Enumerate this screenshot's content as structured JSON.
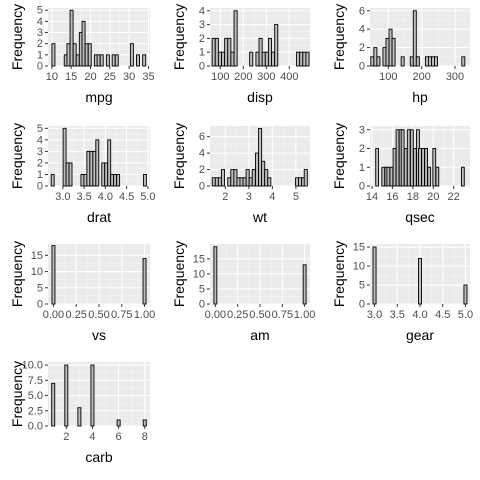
{
  "chart_data": [
    {
      "type": "bar",
      "title": "",
      "xlabel": "mpg",
      "ylabel": "Frequency",
      "xlim": [
        9,
        35.4
      ],
      "ylim": [
        0,
        5.2
      ],
      "xticks": [
        10,
        15,
        20,
        25,
        30,
        35
      ],
      "yticks": [
        0,
        1,
        2,
        3,
        4,
        5
      ],
      "grid": true,
      "bin_width": 0.785,
      "bins_x": [
        10.4,
        11.2,
        12.0,
        12.8,
        13.6,
        14.3,
        15.1,
        15.9,
        16.7,
        17.5,
        18.2,
        19.0,
        19.8,
        20.6,
        21.4,
        22.1,
        22.9,
        23.7,
        24.5,
        25.3,
        26.0,
        26.8,
        27.6,
        28.4,
        29.2,
        29.9,
        30.7,
        31.5,
        32.3,
        33.1,
        33.9
      ],
      "bins_y": [
        2,
        0,
        0,
        0,
        1,
        2,
        5,
        2,
        1,
        3,
        4,
        2,
        2,
        0,
        1,
        1,
        1,
        0,
        1,
        0,
        1,
        1,
        0,
        0,
        0,
        0,
        2,
        0,
        1,
        0,
        1
      ]
    },
    {
      "type": "bar",
      "title": "",
      "xlabel": "disp",
      "ylabel": "Frequency",
      "xlim": [
        55,
        490
      ],
      "ylim": [
        0,
        4.2
      ],
      "xticks": [
        100,
        200,
        300,
        400
      ],
      "xtick_labels": [
        "100",
        "200",
        "300",
        "400"
      ],
      "yticks": [
        0,
        1,
        2,
        3,
        4
      ],
      "grid": true,
      "bin_width": 13.6,
      "bins_x": [
        71.1,
        84.7,
        98.3,
        111.9,
        125.5,
        139.1,
        152.7,
        166.3,
        179.9,
        193.5,
        207.1,
        220.7,
        234.3,
        247.9,
        261.5,
        275.1,
        288.7,
        302.3,
        315.9,
        329.5,
        343.1,
        356.7,
        370.3,
        383.9,
        397.5,
        411.1,
        424.7,
        438.3,
        451.9,
        465.5,
        479.1
      ],
      "bins_y": [
        2,
        2,
        1,
        1,
        2,
        2,
        1,
        4,
        0,
        0,
        0,
        0,
        1,
        0,
        1,
        2,
        1,
        1,
        2,
        1,
        3,
        0,
        0,
        0,
        0,
        0,
        0,
        1,
        1,
        1,
        1
      ]
    },
    {
      "type": "bar",
      "title": "",
      "xlabel": "hp",
      "ylabel": "Frequency",
      "xlim": [
        45,
        345
      ],
      "ylim": [
        0,
        6.3
      ],
      "xticks": [
        100,
        200,
        300
      ],
      "yticks": [
        0,
        2,
        4,
        6
      ],
      "grid": true,
      "bin_width": 9.1,
      "bins_x": [
        52,
        61.1,
        70.2,
        79.3,
        88.4,
        97.5,
        106.6,
        115.7,
        124.8,
        133.9,
        143,
        152.1,
        161.2,
        170.3,
        179.4,
        188.5,
        197.6,
        206.7,
        215.8,
        224.9,
        234,
        243.1,
        252.2,
        261.3,
        270.4,
        279.5,
        288.6,
        297.7,
        306.8,
        315.9,
        325
      ],
      "bins_y": [
        1,
        2,
        1,
        0,
        2,
        3,
        4,
        3,
        0,
        0,
        1,
        0,
        0,
        1,
        6,
        1,
        0,
        0,
        1,
        1,
        1,
        1,
        0,
        0,
        0,
        0,
        0,
        0,
        0,
        0,
        1
      ]
    },
    {
      "type": "bar",
      "title": "",
      "xlabel": "drat",
      "ylabel": "Frequency",
      "xlim": [
        2.65,
        5.05
      ],
      "ylim": [
        0,
        5.2
      ],
      "xticks": [
        3.0,
        3.5,
        4.0,
        4.5,
        5.0
      ],
      "xtick_labels": [
        "3.0",
        "3.5",
        "4.0",
        "4.5",
        "5.0"
      ],
      "yticks": [
        0,
        1,
        2,
        3,
        4,
        5
      ],
      "grid": true,
      "bin_width": 0.07,
      "bins_x": [
        2.76,
        2.83,
        2.9,
        2.97,
        3.04,
        3.11,
        3.18,
        3.25,
        3.32,
        3.39,
        3.46,
        3.53,
        3.6,
        3.67,
        3.74,
        3.81,
        3.88,
        3.95,
        4.02,
        4.09,
        4.16,
        4.23,
        4.3,
        4.37,
        4.44,
        4.51,
        4.58,
        4.65,
        4.72,
        4.79,
        4.86,
        4.93
      ],
      "bins_y": [
        1,
        0,
        0,
        0,
        5,
        2,
        2,
        0,
        0,
        0,
        1,
        1,
        3,
        3,
        3,
        4,
        0,
        2,
        2,
        4,
        1,
        1,
        1,
        0,
        0,
        0,
        0,
        0,
        0,
        0,
        0,
        1
      ]
    },
    {
      "type": "bar",
      "title": "",
      "xlabel": "wt",
      "ylabel": "Frequency",
      "xlim": [
        1.35,
        5.6
      ],
      "ylim": [
        0,
        7.3
      ],
      "xticks": [
        2,
        3,
        4,
        5
      ],
      "yticks": [
        0,
        2,
        4,
        6
      ],
      "grid": true,
      "bin_width": 0.131,
      "bins_x": [
        1.51,
        1.64,
        1.77,
        1.9,
        2.04,
        2.17,
        2.3,
        2.43,
        2.56,
        2.69,
        2.82,
        2.95,
        3.08,
        3.21,
        3.35,
        3.48,
        3.61,
        3.74,
        3.87,
        4.0,
        4.13,
        4.26,
        4.39,
        4.52,
        4.66,
        4.79,
        4.92,
        5.05,
        5.18,
        5.31,
        5.42
      ],
      "bins_y": [
        1,
        1,
        1,
        2,
        0,
        1,
        2,
        2,
        1,
        1,
        1,
        2,
        1,
        2,
        4,
        7,
        3,
        2,
        1,
        0,
        0,
        0,
        0,
        0,
        0,
        0,
        0,
        1,
        1,
        1,
        2
      ]
    },
    {
      "type": "bar",
      "title": "",
      "xlabel": "qsec",
      "ylabel": "Frequency",
      "xlim": [
        13.8,
        23.6
      ],
      "ylim": [
        0,
        3.2
      ],
      "xticks": [
        14,
        16,
        18,
        20,
        22
      ],
      "yticks": [
        0,
        1,
        2,
        3
      ],
      "grid": true,
      "bin_width": 0.281,
      "bins_x": [
        14.5,
        14.8,
        15.1,
        15.4,
        15.6,
        15.9,
        16.2,
        16.5,
        16.8,
        17.0,
        17.3,
        17.6,
        17.9,
        18.2,
        18.5,
        18.7,
        19.0,
        19.3,
        19.6,
        19.9,
        20.1,
        20.4,
        20.7,
        21.0,
        21.3,
        21.6,
        21.8,
        22.1,
        22.4,
        22.6,
        22.9
      ],
      "bins_y": [
        2,
        0,
        1,
        1,
        1,
        1,
        2,
        3,
        3,
        3,
        2,
        3,
        3,
        2,
        3,
        2,
        2,
        2,
        1,
        0,
        2,
        1,
        0,
        0,
        0,
        0,
        0,
        0,
        0,
        0,
        1
      ]
    },
    {
      "type": "bar",
      "title": "",
      "xlabel": "vs",
      "ylabel": "Frequency",
      "xlim": [
        -0.06,
        1.06
      ],
      "ylim": [
        0,
        18.5
      ],
      "xticks": [
        0,
        0.25,
        0.5,
        0.75,
        1
      ],
      "xtick_labels": [
        "0.00",
        "0.25",
        "0.50",
        "0.75",
        "1.00"
      ],
      "yticks": [
        0,
        5,
        10,
        15
      ],
      "grid": true,
      "bin_width": 0.033,
      "bins_x": [
        0,
        1
      ],
      "bins_y": [
        18,
        14
      ]
    },
    {
      "type": "bar",
      "title": "",
      "xlabel": "am",
      "ylabel": "Frequency",
      "xlim": [
        -0.06,
        1.06
      ],
      "ylim": [
        0,
        19.9
      ],
      "xticks": [
        0,
        0.25,
        0.5,
        0.75,
        1
      ],
      "xtick_labels": [
        "0.00",
        "0.25",
        "0.50",
        "0.75",
        "1.00"
      ],
      "yticks": [
        0,
        5,
        10,
        15
      ],
      "grid": true,
      "bin_width": 0.033,
      "bins_x": [
        0,
        1
      ],
      "bins_y": [
        19,
        13
      ]
    },
    {
      "type": "bar",
      "title": "",
      "xlabel": "gear",
      "ylabel": "Frequency",
      "xlim": [
        2.9,
        5.1
      ],
      "ylim": [
        0,
        15.8
      ],
      "xticks": [
        3.0,
        3.5,
        4.0,
        4.5,
        5.0
      ],
      "xtick_labels": [
        "3.0",
        "3.5",
        "4.0",
        "4.5",
        "5.0"
      ],
      "yticks": [
        0,
        5,
        10,
        15
      ],
      "grid": true,
      "bin_width": 0.067,
      "bins_x": [
        3,
        4,
        5
      ],
      "bins_y": [
        15,
        12,
        5
      ]
    },
    {
      "type": "bar",
      "title": "",
      "xlabel": "carb",
      "ylabel": "Frequency",
      "xlim": [
        0.6,
        8.4
      ],
      "ylim": [
        0,
        10.5
      ],
      "xticks": [
        2,
        4,
        6,
        8
      ],
      "xtick_labels": [
        "2",
        "4",
        "6",
        "8"
      ],
      "yticks": [
        0,
        2.5,
        5,
        7.5,
        10
      ],
      "ytick_labels": [
        "0.0",
        "2.5",
        "5.0",
        "7.5",
        "10.0"
      ],
      "grid": true,
      "bin_width": 0.233,
      "bins_x": [
        1,
        2,
        3,
        4,
        6,
        8
      ],
      "bins_y": [
        7,
        10,
        3,
        10,
        1,
        1
      ]
    }
  ]
}
